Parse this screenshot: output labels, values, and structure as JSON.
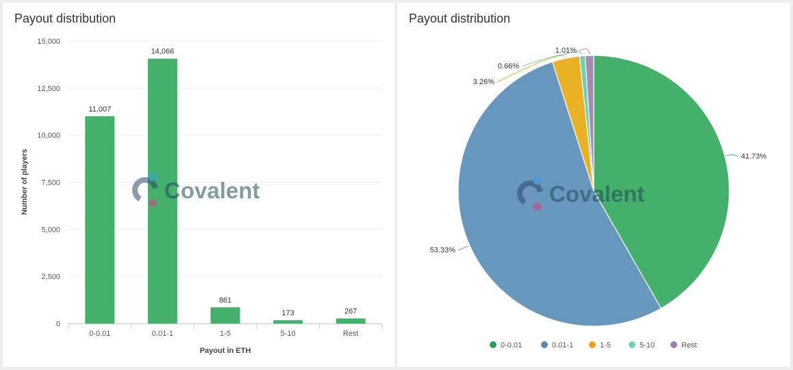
{
  "panels": [
    {
      "title": "Payout distribution"
    },
    {
      "title": "Payout distribution"
    }
  ],
  "watermark": {
    "text": "Covalent",
    "colors": {
      "ring": "#2e4a6b",
      "dot_top": "#3aa0e0",
      "dot_bottom": "#d4457f",
      "text": "#1f4a5a"
    }
  },
  "chart_data": [
    {
      "type": "bar",
      "title": "Payout distribution",
      "categories": [
        "0-0.01",
        "0.01-1",
        "1-5",
        "5-10",
        "Rest"
      ],
      "values": [
        11007,
        14066,
        861,
        173,
        267
      ],
      "value_labels": [
        "11,007",
        "14,066",
        "861",
        "173",
        "267"
      ],
      "xlabel": "Payout in ETH",
      "ylabel": "Number of players",
      "ylim": [
        0,
        15000
      ],
      "yticks": [
        0,
        2500,
        5000,
        7500,
        10000,
        12500,
        15000
      ],
      "ytick_labels": [
        "0",
        "2,500",
        "5,000",
        "7,500",
        "10,000",
        "12,500",
        "15,000"
      ],
      "grid": true,
      "color": "#45b06c"
    },
    {
      "type": "pie",
      "title": "Payout distribution",
      "categories": [
        "0-0.01",
        "0.01-1",
        "1-5",
        "5-10",
        "Rest"
      ],
      "values": [
        41.73,
        53.33,
        3.26,
        0.66,
        1.01
      ],
      "value_labels": [
        "41.73%",
        "53.33%",
        "3.26%",
        "0.66%",
        "1.01%"
      ],
      "colors": [
        "#45b06c",
        "#6897bd",
        "#e9b125",
        "#6fd1b4",
        "#a68bb0"
      ],
      "legend_colors": [
        "#2ea05a",
        "#5a87b0",
        "#e8a020",
        "#6fd1b4",
        "#9a7fa6"
      ],
      "legend": "bottom"
    }
  ]
}
